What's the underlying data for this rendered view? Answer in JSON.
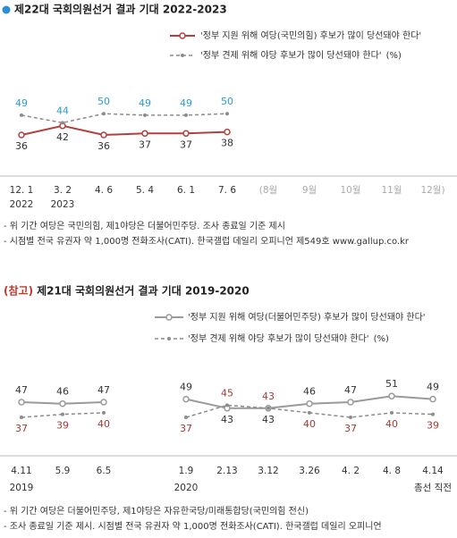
{
  "chart_data": [
    {
      "type": "line",
      "title": "제22대 국회의원선거 결과 기대 2022-2023",
      "categories": [
        "12. 1",
        "3. 2",
        "4. 6",
        "5. 4",
        "6. 1",
        "7. 6",
        "(8월",
        "9월",
        "10월",
        "11월",
        "12월)"
      ],
      "x_sublabels": [
        "2022",
        "2023",
        null,
        null,
        null,
        null,
        null,
        null,
        null,
        null,
        null
      ],
      "series": [
        {
          "name": "'정부 지원 위해 여당(국민의힘) 후보가 많이 당선돼야 한다'",
          "color": "#b3403d",
          "label_color": "#333333",
          "style": "solid",
          "values": [
            36,
            42,
            36,
            37,
            37,
            38,
            null,
            null,
            null,
            null,
            null
          ]
        },
        {
          "name": "'정부 견제 위해 야당 후보가 많이 당선돼야 한다'",
          "color": "#8c8c8c",
          "label_color": "#2a9bd6",
          "style": "dashed",
          "values": [
            49,
            44,
            50,
            49,
            49,
            50,
            null,
            null,
            null,
            null,
            null
          ]
        }
      ],
      "unit": "(%)",
      "notes": [
        "- 위 기간 여당은 국민의힘, 제1야당은 더불어민주당. 조사 종료일 기준 제시",
        "- 시점별 전국 유권자 약 1,000명 전화조사(CATI). 한국갤럽 데일리 오피니언 제549호 www.gallup.co.kr"
      ]
    },
    {
      "type": "line",
      "title_prefix": "(참고)",
      "title": "제21대 국회의원선거 결과 기대 2019-2020",
      "categories": [
        "4.11",
        "5.9",
        "6.5",
        null,
        "1.9",
        "2.13",
        "3.12",
        "3.26",
        "4. 2",
        "4. 8",
        "4.14"
      ],
      "x_sublabels": [
        "2019",
        null,
        null,
        null,
        "2020",
        null,
        null,
        null,
        null,
        null,
        "총선 직전"
      ],
      "series": [
        {
          "name": "'정부 지원 위해 여당(더불어민주당) 후보가 많이 당선돼야 한다'",
          "color": "#9a9a9a",
          "label_color": "#333333",
          "style": "solid",
          "values": [
            47,
            46,
            47,
            null,
            49,
            43,
            43,
            46,
            47,
            51,
            49
          ]
        },
        {
          "name": "'정부 견제 위해 야당 후보가 많이 당선돼야 한다'",
          "color": "#8c8c8c",
          "label_color": "#a33b38",
          "style": "dashed",
          "values": [
            37,
            39,
            40,
            null,
            37,
            45,
            43,
            40,
            37,
            40,
            39
          ]
        }
      ],
      "unit": "(%)",
      "notes": [
        "- 위 기간 여당은 더불어민주당, 제1야당은 자유한국당/미래통합당(국민의힘 전신)",
        "- 조사 종료일 기준 제시. 시점별 전국 유권자 약 1,000명 전화조사(CATI). 한국갤럽 데일리 오피니언"
      ]
    }
  ]
}
